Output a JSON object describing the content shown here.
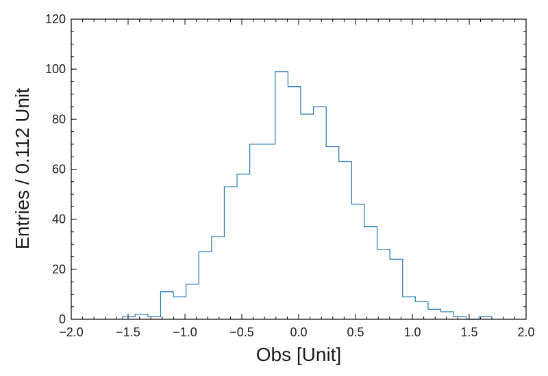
{
  "chart_data": {
    "type": "histogram",
    "xlabel": "Obs [Unit]",
    "ylabel": "Entries / 0.112 Unit",
    "xlim": [
      -2.0,
      2.0
    ],
    "ylim": [
      0,
      120
    ],
    "bin_start": -1.55,
    "bin_width": 0.112,
    "counts": [
      1,
      2,
      1,
      11,
      9,
      14,
      27,
      33,
      53,
      58,
      70,
      70,
      99,
      93,
      82,
      85,
      69,
      63,
      46,
      37,
      28,
      24,
      9,
      7,
      4,
      3,
      1,
      0,
      1
    ],
    "x_ticks": [
      "−2.0",
      "−1.5",
      "−1.0",
      "−0.5",
      "0.0",
      "0.5",
      "1.0",
      "1.5",
      "2.0"
    ],
    "x_tick_values": [
      -2.0,
      -1.5,
      -1.0,
      -0.5,
      0.0,
      0.5,
      1.0,
      1.5,
      2.0
    ],
    "y_ticks": [
      "0",
      "20",
      "40",
      "60",
      "80",
      "100",
      "120"
    ],
    "y_tick_values": [
      0,
      20,
      40,
      60,
      80,
      100,
      120
    ],
    "line_color": "#1f77b4",
    "grid": false
  }
}
